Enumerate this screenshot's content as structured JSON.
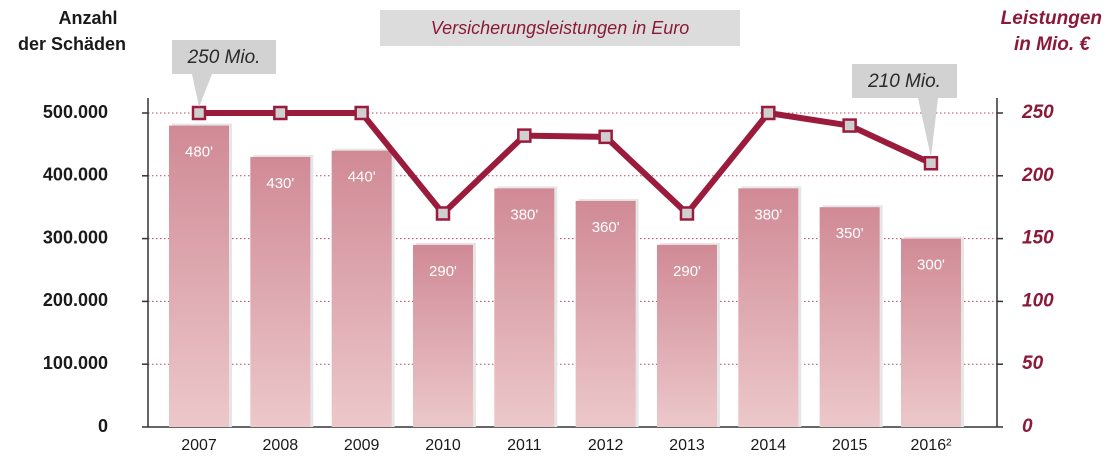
{
  "chart_data": {
    "type": "bar",
    "title": "Versicherungsleistungen in Euro",
    "y_label_lines": [
      "Anzahl",
      "der Schäden"
    ],
    "y2_label_lines": [
      "Leistungen",
      "in Mio. €"
    ],
    "categories": [
      "2007",
      "2008",
      "2009",
      "2010",
      "2011",
      "2012",
      "2013",
      "2014",
      "2015",
      "2016²"
    ],
    "series": [
      {
        "type": "bar",
        "color": "#d08a96",
        "values": [
          480000,
          430000,
          440000,
          290000,
          380000,
          360000,
          290000,
          380000,
          350000,
          300000
        ],
        "value_labels": [
          "480'",
          "430'",
          "440'",
          "290'",
          "380'",
          "360'",
          "290'",
          "380'",
          "350'",
          "300'"
        ]
      },
      {
        "type": "line",
        "axis": "y2",
        "color": "#9b1b3d",
        "values": [
          250,
          250,
          250,
          170,
          232,
          231,
          170,
          250,
          240,
          210
        ]
      }
    ],
    "ylim": [
      0,
      500000
    ],
    "yticks": [
      0,
      {
        "value": 100000,
        "label": "100.000"
      },
      {
        "value": 200000,
        "label": "200.000"
      },
      {
        "value": 300000,
        "label": "300.000"
      },
      {
        "value": 400000,
        "label": "400.000"
      },
      {
        "value": 500000,
        "label": "500.000"
      }
    ],
    "y2lim": [
      0,
      250
    ],
    "y2ticks": [
      0,
      50,
      100,
      150,
      200,
      250
    ],
    "grid": true,
    "annotations": [
      "250 Mio.",
      "210 Mio."
    ]
  }
}
